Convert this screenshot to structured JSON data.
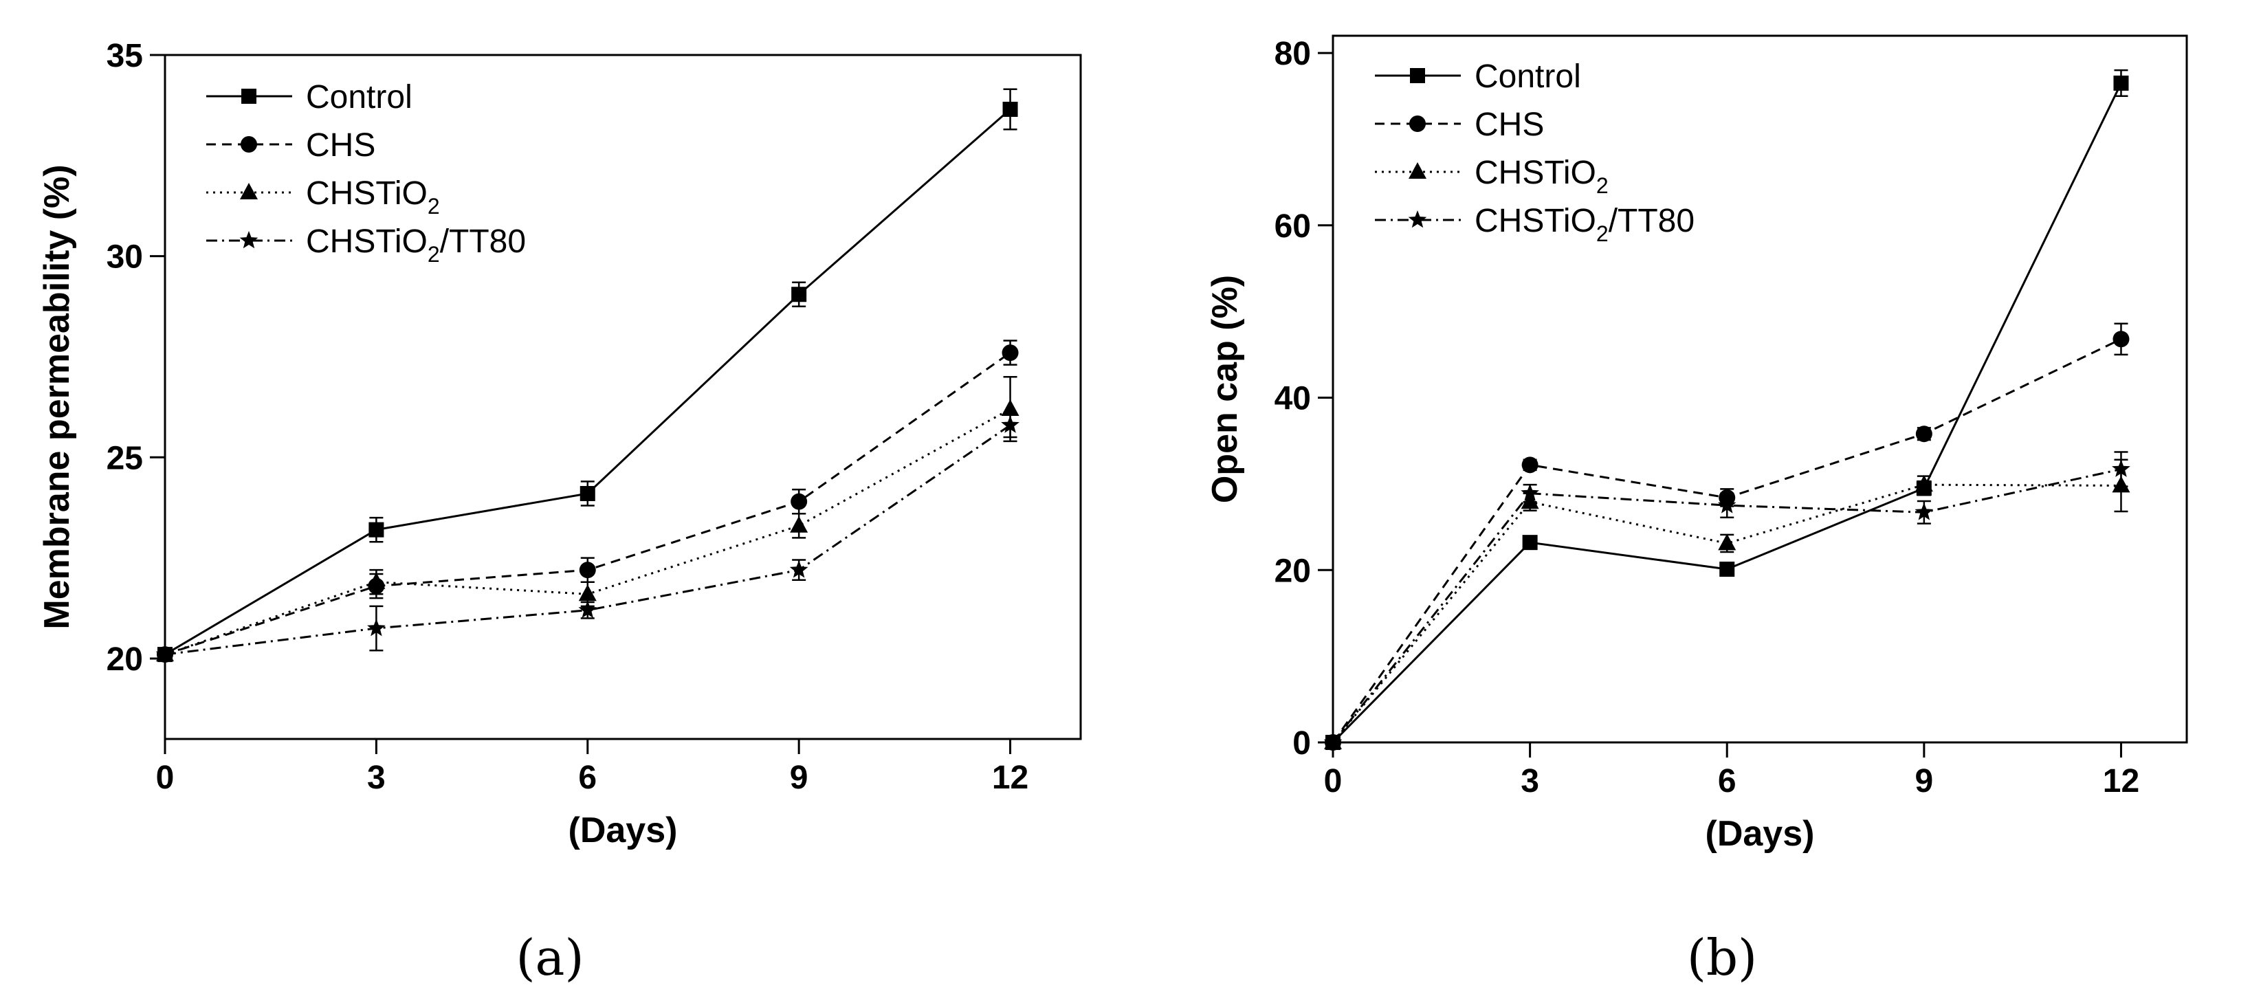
{
  "chart_data": [
    {
      "type": "line",
      "panel_label": "(a)",
      "xlabel": "(Days)",
      "ylabel": "Membrane permeability (%)",
      "x": [
        0,
        3,
        6,
        9,
        12
      ],
      "xticks": [
        "0",
        "3",
        "6",
        "9",
        "12"
      ],
      "yticks": [
        "20",
        "25",
        "30",
        "35"
      ],
      "xlim": [
        0,
        13
      ],
      "ylim": [
        18,
        35
      ],
      "legend_position": "top-left",
      "series": [
        {
          "name": "Control",
          "base": "Control",
          "sub": "",
          "suffix": "",
          "marker": "square",
          "dash": "solid",
          "values": [
            20.1,
            23.2,
            24.1,
            29.05,
            33.65
          ],
          "errors": [
            0,
            0.3,
            0.3,
            0.3,
            0.5
          ]
        },
        {
          "name": "CHS",
          "base": "CHS",
          "sub": "",
          "suffix": "",
          "marker": "circle",
          "dash": "dashed",
          "values": [
            20.1,
            21.8,
            22.2,
            23.9,
            27.6
          ],
          "errors": [
            0,
            0.3,
            0.3,
            0.3,
            0.3
          ]
        },
        {
          "name": "CHSTiO2",
          "base": "CHSTiO",
          "sub": "2",
          "suffix": "",
          "marker": "triangle",
          "dash": "dotted",
          "values": [
            20.1,
            21.9,
            21.6,
            23.3,
            26.2
          ],
          "errors": [
            0,
            0.3,
            0.3,
            0.3,
            0.8
          ]
        },
        {
          "name": "CHSTiO2/TT80",
          "base": "CHSTiO",
          "sub": "2",
          "suffix": "/TT80",
          "marker": "star",
          "dash": "dashdot",
          "values": [
            20.1,
            20.75,
            21.2,
            22.2,
            25.8
          ],
          "errors": [
            0,
            0.55,
            0.2,
            0.25,
            0.3
          ]
        }
      ]
    },
    {
      "type": "line",
      "panel_label": "(b)",
      "xlabel": "(Days)",
      "ylabel": "Open cap (%)",
      "x": [
        0,
        3,
        6,
        9,
        12
      ],
      "xticks": [
        "0",
        "3",
        "6",
        "9",
        "12"
      ],
      "yticks": [
        "0",
        "20",
        "40",
        "60",
        "80"
      ],
      "xlim": [
        0,
        13
      ],
      "ylim": [
        0,
        82
      ],
      "legend_position": "top-left",
      "series": [
        {
          "name": "Control",
          "base": "Control",
          "sub": "",
          "suffix": "",
          "marker": "square",
          "dash": "solid",
          "values": [
            0,
            23.2,
            20.1,
            29.5,
            76.5
          ],
          "errors": [
            0,
            0.5,
            0.5,
            0.8,
            1.5
          ]
        },
        {
          "name": "CHS",
          "base": "CHS",
          "sub": "",
          "suffix": "",
          "marker": "circle",
          "dash": "dashed",
          "values": [
            0,
            32.2,
            28.4,
            35.8,
            46.8
          ],
          "errors": [
            0,
            0.6,
            1.0,
            0.7,
            1.8
          ]
        },
        {
          "name": "CHSTiO2",
          "base": "CHSTiO",
          "sub": "2",
          "suffix": "",
          "marker": "triangle",
          "dash": "dotted",
          "values": [
            0,
            27.9,
            23.1,
            29.9,
            29.8
          ],
          "errors": [
            0,
            1.0,
            1.0,
            1.0,
            3.0
          ]
        },
        {
          "name": "CHSTiO2/TT80",
          "base": "CHSTiO",
          "sub": "2",
          "suffix": "/TT80",
          "marker": "star",
          "dash": "dashdot",
          "values": [
            0,
            28.9,
            27.5,
            26.7,
            31.7
          ],
          "errors": [
            0,
            1.0,
            1.4,
            1.3,
            2.0
          ]
        }
      ]
    }
  ]
}
